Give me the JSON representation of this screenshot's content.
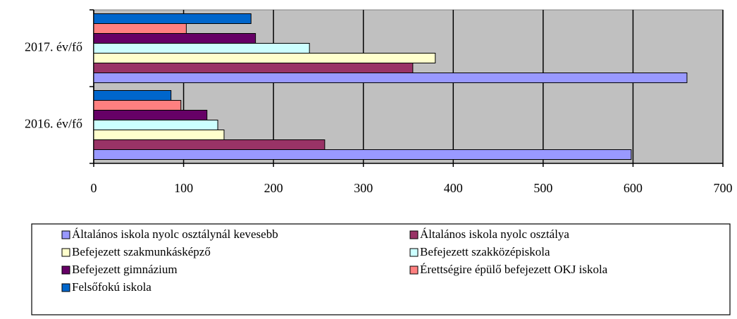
{
  "chart_data": {
    "type": "bar",
    "orientation": "horizontal",
    "categories": [
      "2016. év/fő",
      "2017. év/fő"
    ],
    "series": [
      {
        "name": "Általános iskola nyolc osztálynál kevesebb",
        "color": "#9999ff",
        "values": [
          598,
          660
        ]
      },
      {
        "name": "Általános iskola nyolc osztálya",
        "color": "#993366",
        "values": [
          257,
          355
        ]
      },
      {
        "name": "Befejezett szakmunkásképző",
        "color": "#ffffcc",
        "values": [
          145,
          380
        ]
      },
      {
        "name": "Befejezett szakközépiskola",
        "color": "#ccffff",
        "values": [
          138,
          240
        ]
      },
      {
        "name": "Befejezett gimnázium",
        "color": "#660066",
        "values": [
          126,
          180
        ]
      },
      {
        "name": "Érettségire épülő befejezett OKJ iskola",
        "color": "#ff8080",
        "values": [
          97,
          103
        ]
      },
      {
        "name": "Felsőfokú iskola",
        "color": "#0066cc",
        "values": [
          86,
          175
        ]
      }
    ],
    "xlim": [
      0,
      700
    ],
    "xticks": [
      0,
      100,
      200,
      300,
      400,
      500,
      600,
      700
    ],
    "grid": true,
    "plot_background": "#c0c0c0",
    "legend": "bottom"
  }
}
